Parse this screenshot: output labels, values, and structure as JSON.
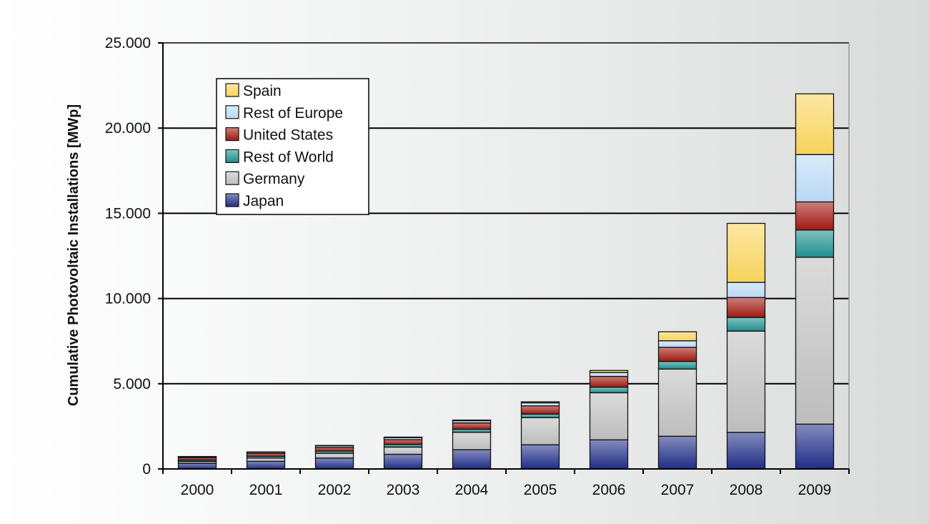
{
  "chart_data": {
    "type": "bar",
    "stacked": true,
    "title": "",
    "xlabel": "",
    "ylabel": "Cumulative Photovoltaic Installations [MWp]",
    "ylim": [
      0,
      25000
    ],
    "yticks": [
      0,
      5000,
      10000,
      15000,
      20000,
      25000
    ],
    "ytick_labels": [
      "0",
      "5.000",
      "10.000",
      "15.000",
      "20.000",
      "25.000"
    ],
    "grid": "horizontal",
    "legend_position": "top-left",
    "categories": [
      "2000",
      "2001",
      "2002",
      "2003",
      "2004",
      "2005",
      "2006",
      "2007",
      "2008",
      "2009"
    ],
    "series": [
      {
        "name": "Japan",
        "color": "#1f2d86",
        "values": [
          330,
          450,
          640,
          860,
          1130,
          1420,
          1710,
          1920,
          2150,
          2630
        ]
      },
      {
        "name": "Germany",
        "color": "#bdbdbd",
        "values": [
          110,
          190,
          280,
          420,
          1020,
          1590,
          2760,
          3940,
          5940,
          9790
        ]
      },
      {
        "name": "Rest of World",
        "color": "#1e8e8e",
        "values": [
          80,
          100,
          130,
          160,
          180,
          210,
          330,
          450,
          800,
          1600
        ]
      },
      {
        "name": "United States",
        "color": "#a01810",
        "values": [
          140,
          170,
          210,
          280,
          370,
          480,
          630,
          830,
          1170,
          1650
        ]
      },
      {
        "name": "Rest of Europe",
        "color": "#b9d9f4",
        "values": [
          60,
          80,
          100,
          120,
          130,
          180,
          230,
          380,
          890,
          2780
        ]
      },
      {
        "name": "Spain",
        "color": "#f7d35a",
        "values": [
          10,
          10,
          20,
          30,
          40,
          60,
          120,
          530,
          3460,
          3560
        ]
      }
    ]
  }
}
